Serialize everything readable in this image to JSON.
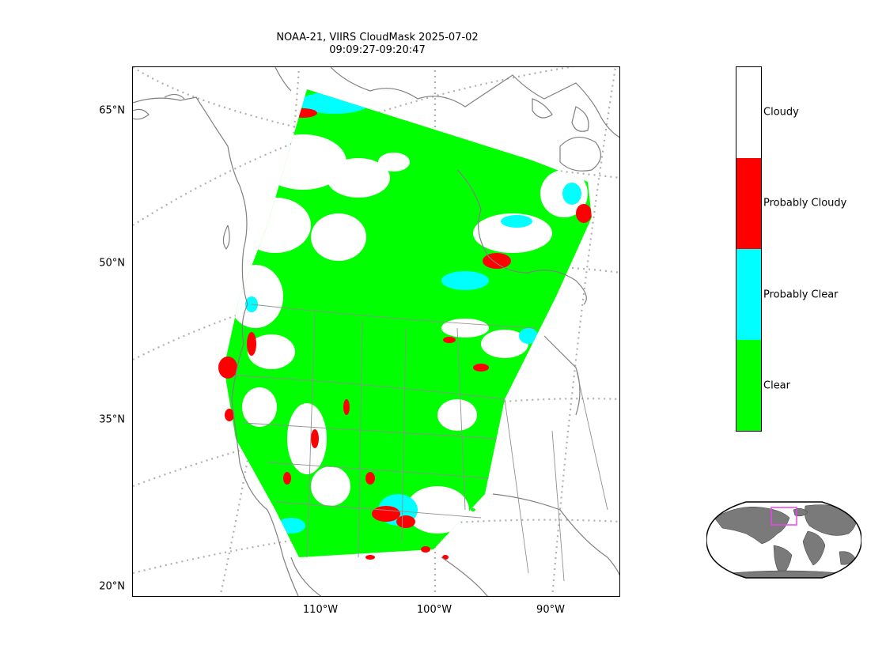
{
  "title": {
    "line1": "NOAA-21, VIIRS CloudMask 2025-07-02",
    "line2": "09:09:27-09:20:47"
  },
  "axes": {
    "lat_labels": [
      "65°N",
      "50°N",
      "35°N",
      "20°N"
    ],
    "lon_labels": [
      "110°W",
      "100°W",
      "90°W"
    ]
  },
  "colorbar": {
    "classes": [
      {
        "label": "Cloudy",
        "color": "#ffffff"
      },
      {
        "label": "Probably Cloudy",
        "color": "#ff0000"
      },
      {
        "label": "Probably Clear",
        "color": "#00ffff"
      },
      {
        "label": "Clear",
        "color": "#00ff00"
      }
    ]
  },
  "map": {
    "coastline_color": "#808080",
    "gridline_color": "#b0b0b0",
    "inset_land_color": "#7a7a7a",
    "inset_box_color": "#ee44ee"
  }
}
